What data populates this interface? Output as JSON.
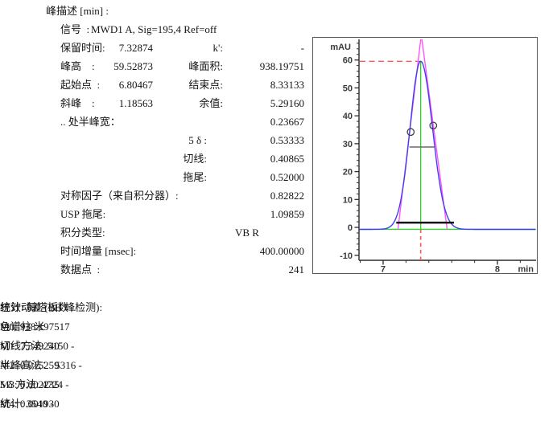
{
  "peak_description": {
    "title": "峰描述 [min] :",
    "signal_label": "信号  :",
    "signal_value": "MWD1 A, Sig=195,4 Ref=off",
    "rows": [
      {
        "label": "保留时间:",
        "v1": "7.32874",
        "mid": "k':",
        "v2": "-"
      },
      {
        "label": "峰高    :",
        "v1": "59.52873",
        "mid": "峰面积:",
        "v2": "938.19751"
      },
      {
        "label": "起始点  :",
        "v1": "6.80467",
        "mid": "结束点:",
        "v2": "8.33133"
      },
      {
        "label": "斜峰    :",
        "v1": "1.18563",
        "mid": "余值:",
        "v2": "5.29160"
      },
      {
        "label": ".. 处半峰宽：",
        "v2": "0.23667"
      },
      {
        "mid": "5 δ :",
        "v2": "0.53333"
      },
      {
        "mid": "切线:",
        "v2": "0.40865"
      },
      {
        "mid": "拖尾:",
        "v2": "0.52000"
      },
      {
        "label": "对称因子（来自积分器）:",
        "v2": "0.82822"
      },
      {
        "label": "USP 拖尾:",
        "v2": "1.09859"
      },
      {
        "label": "积分类型:",
        "v2": "VB R"
      },
      {
        "label": "时间增量 [msec]:",
        "v2": "400.00000"
      },
      {
        "label": "数据点  :",
        "v2": "241"
      }
    ]
  },
  "statistics": {
    "title": "统计动差 (BB 峰检测):",
    "moments": [
      {
        "label": "M0:",
        "value": "938.197517"
      },
      {
        "label": "M1:",
        "value": "7.349240"
      },
      {
        "label": "M2:",
        "value": "0.015259"
      },
      {
        "label": "M3:",
        "value": "0.002235"
      },
      {
        "label": "M4:",
        "value": "0.001930"
      }
    ]
  },
  "column_efficiency": {
    "title": "柱效: 每塔板数 ..",
    "col1_header": "色谱柱",
    "col2_header": "米",
    "rows": [
      {
        "label": "切线方法:",
        "col1": "5150",
        "col2": "-"
      },
      {
        "label": "半峰高法：",
        "col1": "5316",
        "col2": "-"
      },
      {
        "label": "5 δ 方法:",
        "col1": "4724",
        "col2": "-"
      },
      {
        "label": "统计:",
        "col1": "3540",
        "col2": "-"
      }
    ]
  },
  "chart_data": {
    "type": "line",
    "title": "",
    "xlabel": "min",
    "ylabel": "mAU",
    "xlim": [
      6.789,
      8.331
    ],
    "ylim": [
      -11.8,
      67.4
    ],
    "x_major_ticks": [
      7,
      8
    ],
    "x_minor_step": 0.2,
    "y_major_ticks": [
      -10,
      0,
      10,
      20,
      30,
      40,
      50,
      60
    ],
    "y_minor_step": 2,
    "grid": false,
    "legend": "none",
    "baseline_mau": -0.7,
    "n_points": 241,
    "peak": {
      "retention_time": 7.32874,
      "height": 59.52873,
      "start_time": 6.80467,
      "end_time": 8.33133,
      "sigma_left": 0.093,
      "sigma_right": 0.103
    },
    "tangent": {
      "left_base_time": 7.13,
      "right_base_time": 7.56,
      "apex_time": 7.334,
      "apex_mau": 69
    },
    "markers": {
      "half_height_line": {
        "y": 28.8,
        "x1": 7.23,
        "x2": 7.457
      },
      "base_width_line": {
        "y": 1.7,
        "x1": 7.115,
        "x2": 7.62
      },
      "inflection_circles": [
        [
          7.2415,
          34.2
        ],
        [
          7.4387,
          36.5
        ]
      ],
      "peak_height_dash_y": 59.52873,
      "retention_dash_x": 7.32874
    },
    "colors": {
      "signal": "#4040ee",
      "tangent": "#ff55ff",
      "green": "#2ed32e",
      "red": "#ff5555",
      "axis": "#2b2b2b",
      "half_line": "#6a6a6a",
      "base_line": "#111111"
    }
  }
}
